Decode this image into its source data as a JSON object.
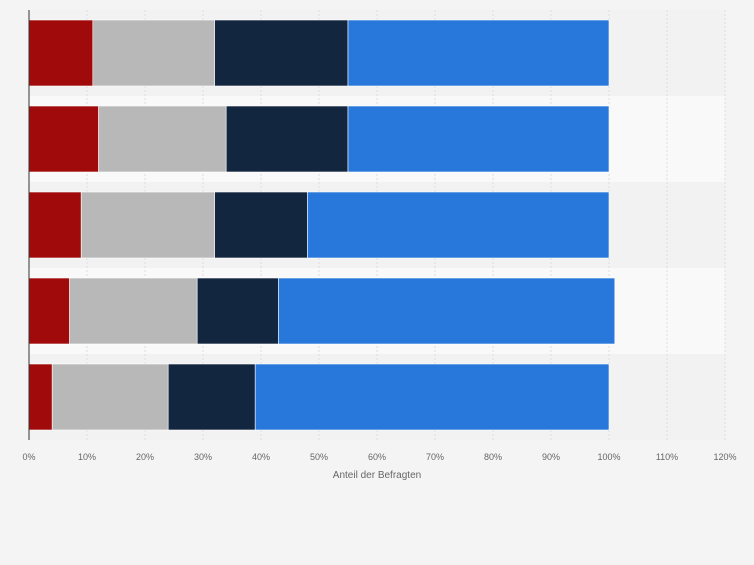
{
  "chart_data": {
    "type": "bar",
    "orientation": "horizontal",
    "stacked": true,
    "categories": [
      "",
      "",
      "",
      "",
      ""
    ],
    "series": [
      {
        "color": "#a10a0a",
        "values": [
          11,
          12,
          9,
          7,
          4
        ]
      },
      {
        "color": "#b8b8b8",
        "values": [
          21,
          22,
          23,
          22,
          20
        ]
      },
      {
        "color": "#12263f",
        "values": [
          23,
          21,
          16,
          14,
          15
        ]
      },
      {
        "color": "#2878dc",
        "values": [
          45,
          45,
          52,
          58,
          61
        ]
      }
    ],
    "xlabel": "Anteil der Befragten",
    "ylabel": "",
    "xlim": [
      0,
      120
    ],
    "xticks": [
      "0%",
      "10%",
      "20%",
      "30%",
      "40%",
      "50%",
      "60%",
      "70%",
      "80%",
      "90%",
      "100%",
      "110%",
      "120%"
    ],
    "grid": true,
    "legend": "none"
  }
}
